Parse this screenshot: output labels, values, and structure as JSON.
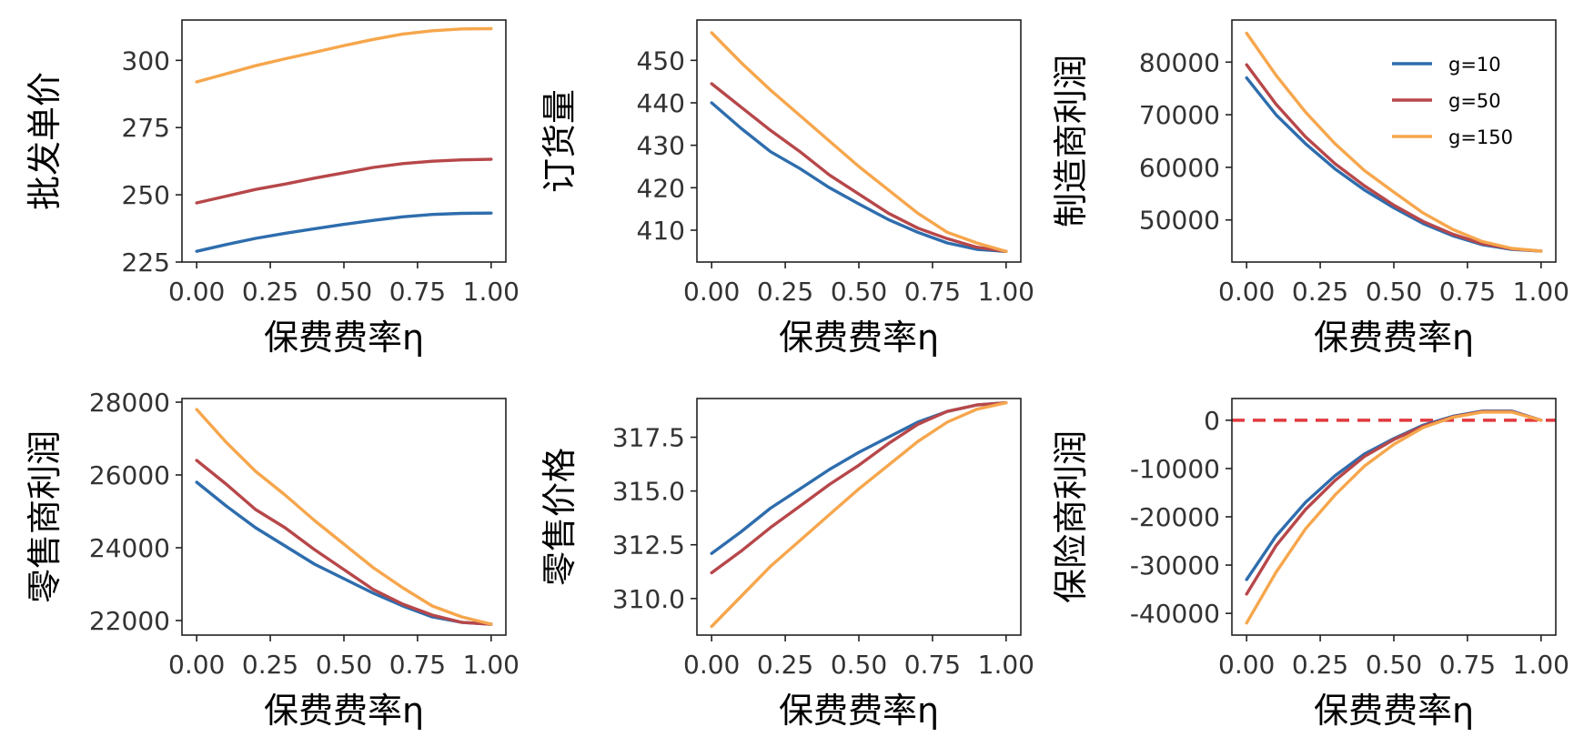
{
  "chart_data": [
    {
      "type": "line",
      "ylabel": "批发单价",
      "xlabel": "保费费率η",
      "xlim": [
        -0.05,
        1.05
      ],
      "ylim": [
        225,
        315
      ],
      "xticks": [
        0,
        0.25,
        0.5,
        0.75,
        1
      ],
      "xtick_labels": [
        "0.00",
        "0.25",
        "0.50",
        "0.75",
        "1.00"
      ],
      "yticks": [
        225,
        250,
        275,
        300
      ],
      "ytick_labels": [
        "225",
        "250",
        "275",
        "300"
      ],
      "grid": false,
      "legend": false,
      "x": [
        0,
        0.1,
        0.2,
        0.3,
        0.4,
        0.5,
        0.6,
        0.7,
        0.8,
        0.9,
        1.0
      ],
      "series": [
        {
          "name": "g=10",
          "color": "#2E6DAD",
          "values": [
            229,
            231.5,
            233.8,
            235.7,
            237.4,
            239,
            240.5,
            241.8,
            242.7,
            243.1,
            243.2
          ]
        },
        {
          "name": "g=50",
          "color": "#B7474A",
          "values": [
            247,
            249.5,
            252,
            254,
            256.2,
            258.2,
            260.2,
            261.6,
            262.5,
            263,
            263.2
          ]
        },
        {
          "name": "g=150",
          "color": "#F6A64C",
          "values": [
            292,
            295,
            298,
            300.6,
            303,
            305.5,
            307.8,
            309.8,
            311,
            311.7,
            311.8
          ]
        }
      ]
    },
    {
      "type": "line",
      "ylabel": "订货量",
      "xlabel": "保费费率η",
      "xlim": [
        -0.05,
        1.05
      ],
      "ylim": [
        402.5,
        459.5
      ],
      "xticks": [
        0,
        0.25,
        0.5,
        0.75,
        1
      ],
      "xtick_labels": [
        "0.00",
        "0.25",
        "0.50",
        "0.75",
        "1.00"
      ],
      "yticks": [
        410,
        420,
        430,
        440,
        450
      ],
      "ytick_labels": [
        "410",
        "420",
        "430",
        "440",
        "450"
      ],
      "grid": false,
      "legend": false,
      "x": [
        0,
        0.1,
        0.2,
        0.3,
        0.4,
        0.5,
        0.6,
        0.7,
        0.8,
        0.9,
        1.0
      ],
      "series": [
        {
          "name": "g=10",
          "color": "#2E6DAD",
          "values": [
            440,
            434,
            428.5,
            424.5,
            420,
            416.2,
            412.5,
            409.5,
            407,
            405.5,
            405
          ]
        },
        {
          "name": "g=50",
          "color": "#B7474A",
          "values": [
            444.5,
            439,
            433.5,
            428.5,
            423,
            418.5,
            414,
            410.5,
            408,
            406,
            405
          ]
        },
        {
          "name": "g=150",
          "color": "#F6A64C",
          "values": [
            456.5,
            449.5,
            443,
            437,
            431,
            425,
            419.5,
            414,
            409.5,
            407,
            405
          ]
        }
      ]
    },
    {
      "type": "line",
      "ylabel": "制造商利润",
      "xlabel": "保费费率η",
      "xlim": [
        -0.05,
        1.05
      ],
      "ylim": [
        42000,
        88000
      ],
      "xticks": [
        0,
        0.25,
        0.5,
        0.75,
        1
      ],
      "xtick_labels": [
        "0.00",
        "0.25",
        "0.50",
        "0.75",
        "1.00"
      ],
      "yticks": [
        50000,
        60000,
        70000,
        80000
      ],
      "ytick_labels": [
        "50000",
        "60000",
        "70000",
        "80000"
      ],
      "grid": false,
      "legend": true,
      "legend_position": "top-right",
      "x": [
        0,
        0.1,
        0.2,
        0.3,
        0.4,
        0.5,
        0.6,
        0.7,
        0.8,
        0.9,
        1.0
      ],
      "series": [
        {
          "name": "g=10",
          "color": "#2E6DAD",
          "values": [
            77000,
            70000,
            64500,
            59700,
            55700,
            52300,
            49300,
            47000,
            45300,
            44400,
            44100
          ]
        },
        {
          "name": "g=50",
          "color": "#B7474A",
          "values": [
            79500,
            72000,
            65800,
            60700,
            56500,
            52800,
            49700,
            47300,
            45500,
            44500,
            44100
          ]
        },
        {
          "name": "g=150",
          "color": "#F6A64C",
          "values": [
            85500,
            77500,
            70500,
            64500,
            59400,
            55300,
            51300,
            48200,
            45900,
            44600,
            44100
          ]
        }
      ]
    },
    {
      "type": "line",
      "ylabel": "零售商利润",
      "xlabel": "保费费率η",
      "xlim": [
        -0.05,
        1.05
      ],
      "ylim": [
        21600,
        28100
      ],
      "xticks": [
        0,
        0.25,
        0.5,
        0.75,
        1
      ],
      "xtick_labels": [
        "0.00",
        "0.25",
        "0.50",
        "0.75",
        "1.00"
      ],
      "yticks": [
        22000,
        24000,
        26000,
        28000
      ],
      "ytick_labels": [
        "22000",
        "24000",
        "26000",
        "28000"
      ],
      "grid": false,
      "legend": false,
      "x": [
        0,
        0.1,
        0.2,
        0.3,
        0.4,
        0.5,
        0.6,
        0.7,
        0.8,
        0.9,
        1.0
      ],
      "series": [
        {
          "name": "g=10",
          "color": "#2E6DAD",
          "values": [
            25800,
            25150,
            24550,
            24050,
            23550,
            23150,
            22750,
            22400,
            22100,
            21950,
            21900
          ]
        },
        {
          "name": "g=50",
          "color": "#B7474A",
          "values": [
            26400,
            25750,
            25050,
            24550,
            23950,
            23400,
            22850,
            22450,
            22150,
            21950,
            21900
          ]
        },
        {
          "name": "g=150",
          "color": "#F6A64C",
          "values": [
            27800,
            26900,
            26100,
            25450,
            24750,
            24100,
            23450,
            22900,
            22400,
            22100,
            21900
          ]
        }
      ]
    },
    {
      "type": "line",
      "ylabel": "零售价格",
      "xlabel": "保费费率η",
      "xlim": [
        -0.05,
        1.05
      ],
      "ylim": [
        308.3,
        319.3
      ],
      "xticks": [
        0,
        0.25,
        0.5,
        0.75,
        1
      ],
      "xtick_labels": [
        "0.00",
        "0.25",
        "0.50",
        "0.75",
        "1.00"
      ],
      "yticks": [
        310,
        312.5,
        315,
        317.5
      ],
      "ytick_labels": [
        "310.0",
        "312.5",
        "315.0",
        "317.5"
      ],
      "grid": false,
      "legend": false,
      "x": [
        0,
        0.1,
        0.2,
        0.3,
        0.4,
        0.5,
        0.6,
        0.7,
        0.8,
        0.9,
        1.0
      ],
      "series": [
        {
          "name": "g=10",
          "color": "#2E6DAD",
          "values": [
            312.1,
            313.1,
            314.2,
            315.1,
            316,
            316.8,
            317.5,
            318.2,
            318.7,
            319,
            319.1
          ]
        },
        {
          "name": "g=50",
          "color": "#B7474A",
          "values": [
            311.2,
            312.2,
            313.3,
            314.3,
            315.3,
            316.2,
            317.2,
            318.1,
            318.7,
            319,
            319.1
          ]
        },
        {
          "name": "g=150",
          "color": "#F6A64C",
          "values": [
            308.7,
            310.1,
            311.5,
            312.7,
            313.9,
            315.1,
            316.2,
            317.3,
            318.2,
            318.8,
            319.1
          ]
        }
      ]
    },
    {
      "type": "line",
      "ylabel": "保险商利润",
      "xlabel": "保费费率η",
      "xlim": [
        -0.05,
        1.05
      ],
      "ylim": [
        -44500,
        4500
      ],
      "xticks": [
        0,
        0.25,
        0.5,
        0.75,
        1
      ],
      "xtick_labels": [
        "0.00",
        "0.25",
        "0.50",
        "0.75",
        "1.00"
      ],
      "yticks": [
        -40000,
        -30000,
        -20000,
        -10000,
        0
      ],
      "ytick_labels": [
        "-40000",
        "-30000",
        "-20000",
        "-10000",
        "0"
      ],
      "grid": false,
      "legend": false,
      "reference_line": {
        "y": 0,
        "color": "#E0393E",
        "style": "dashed"
      },
      "x": [
        0,
        0.1,
        0.2,
        0.3,
        0.4,
        0.5,
        0.6,
        0.7,
        0.8,
        0.9,
        1.0
      ],
      "series": [
        {
          "name": "g=10",
          "color": "#2E6DAD",
          "values": [
            -33000,
            -24000,
            -17000,
            -11500,
            -7000,
            -3800,
            -1000,
            800,
            1900,
            1900,
            0
          ]
        },
        {
          "name": "g=50",
          "color": "#B7474A",
          "values": [
            -36000,
            -26000,
            -18500,
            -12500,
            -7500,
            -4000,
            -1200,
            700,
            1800,
            1800,
            0
          ]
        },
        {
          "name": "g=150",
          "color": "#F6A64C",
          "values": [
            -42000,
            -31500,
            -22500,
            -15500,
            -9500,
            -5000,
            -1500,
            600,
            1700,
            1700,
            0
          ]
        }
      ]
    }
  ]
}
